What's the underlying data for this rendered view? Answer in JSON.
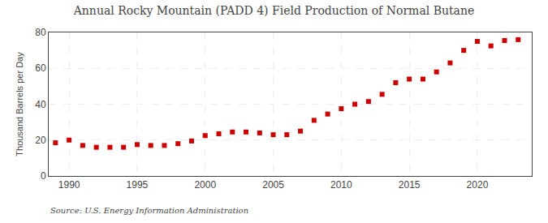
{
  "chart_data": {
    "type": "scatter",
    "title": "Annual Rocky Mountain (PADD 4) Field Production of Normal Butane",
    "ylabel": "Thousand Barrels per Day",
    "annotations": [
      "Source: U.S. Energy Information Administration"
    ],
    "x": [
      1989,
      1990,
      1991,
      1992,
      1993,
      1994,
      1995,
      1996,
      1997,
      1998,
      1999,
      2000,
      2001,
      2002,
      2003,
      2004,
      2005,
      2006,
      2007,
      2008,
      2009,
      2010,
      2011,
      2012,
      2013,
      2014,
      2015,
      2016,
      2017,
      2018,
      2019,
      2020,
      2021,
      2022,
      2023
    ],
    "values": [
      18.5,
      20.0,
      17.0,
      16.0,
      16.0,
      16.0,
      17.5,
      17.0,
      17.0,
      18.0,
      19.5,
      22.5,
      23.5,
      24.5,
      24.5,
      24.0,
      23.0,
      23.0,
      25.0,
      31.0,
      34.5,
      37.5,
      40.0,
      41.5,
      45.5,
      52.0,
      54.0,
      54.0,
      58.0,
      63.0,
      70.0,
      75.0,
      72.5,
      75.5,
      76.0
    ],
    "color": "#cc0000",
    "marker": "square",
    "grid": true,
    "xlim": [
      1988.5,
      2024
    ],
    "xticks": [
      1990,
      1995,
      2000,
      2005,
      2010,
      2015,
      2020
    ],
    "ylim": [
      0,
      80
    ],
    "yticks": [
      0,
      20,
      40,
      60,
      80
    ]
  }
}
